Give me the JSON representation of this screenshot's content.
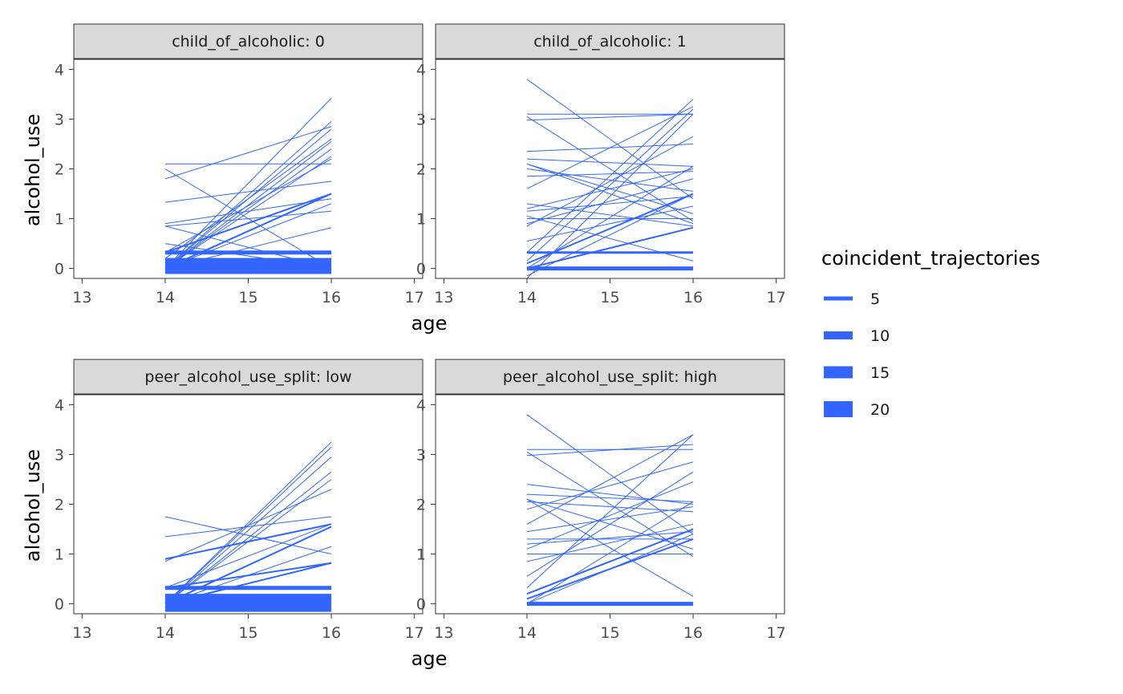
{
  "colors": {
    "line": "#3366FF",
    "strip_fill": "#d9d9d9",
    "panel_border": "#333333"
  },
  "chart_data": [
    {
      "type": "line",
      "panel": "child_of_alcoholic: 0",
      "xlabel": "age",
      "ylabel": "alcohol_use",
      "xlim": [
        12.9,
        17.1
      ],
      "ylim": [
        -0.2,
        4.2
      ],
      "x_ticks": [
        13,
        14,
        15,
        16,
        17
      ],
      "y_ticks": [
        0,
        1,
        2,
        3,
        4
      ],
      "trajectories": [
        {
          "y14": 0.05,
          "y16": 0.05,
          "n": 20
        },
        {
          "y14": 0.32,
          "y16": 0.32,
          "n": 5
        },
        {
          "y14": 2.1,
          "y16": 2.1,
          "n": 1
        },
        {
          "y14": 1.8,
          "y16": 2.85,
          "n": 1
        },
        {
          "y14": 2.0,
          "y16": 0.0,
          "n": 1
        },
        {
          "y14": 0.0,
          "y16": 3.42,
          "n": 1
        },
        {
          "y14": 0.0,
          "y16": 2.95,
          "n": 1
        },
        {
          "y14": 0.0,
          "y16": 2.8,
          "n": 1
        },
        {
          "y14": 0.0,
          "y16": 2.55,
          "n": 1
        },
        {
          "y14": 0.0,
          "y16": 2.4,
          "n": 1
        },
        {
          "y14": 0.0,
          "y16": 2.25,
          "n": 1
        },
        {
          "y14": 0.0,
          "y16": 1.5,
          "n": 2
        },
        {
          "y14": 0.0,
          "y16": 1.3,
          "n": 1
        },
        {
          "y14": 0.0,
          "y16": 0.82,
          "n": 1
        },
        {
          "y14": 0.32,
          "y16": 2.2,
          "n": 1
        },
        {
          "y14": 0.32,
          "y16": 1.5,
          "n": 2
        },
        {
          "y14": 1.33,
          "y16": 1.75,
          "n": 1
        },
        {
          "y14": 0.9,
          "y16": 1.4,
          "n": 1
        },
        {
          "y14": 0.85,
          "y16": 1.15,
          "n": 1
        },
        {
          "y14": 0.85,
          "y16": 0.0,
          "n": 1
        },
        {
          "y14": 0.5,
          "y16": 0.0,
          "n": 1
        },
        {
          "y14": 0.2,
          "y16": 2.6,
          "n": 1
        }
      ]
    },
    {
      "type": "line",
      "panel": "child_of_alcoholic: 1",
      "xlabel": "age",
      "ylabel": "",
      "xlim": [
        12.9,
        17.1
      ],
      "ylim": [
        -0.2,
        4.2
      ],
      "x_ticks": [
        13,
        14,
        15,
        16,
        17
      ],
      "y_ticks": [
        0,
        1,
        2,
        3,
        4
      ],
      "trajectories": [
        {
          "y14": 0.0,
          "y16": 0.0,
          "n": 5
        },
        {
          "y14": 0.32,
          "y16": 0.32,
          "n": 3
        },
        {
          "y14": 3.8,
          "y16": 1.4,
          "n": 1
        },
        {
          "y14": 3.1,
          "y16": 3.1,
          "n": 1
        },
        {
          "y14": 2.98,
          "y16": 3.1,
          "n": 1
        },
        {
          "y14": 3.05,
          "y16": 0.95,
          "n": 1
        },
        {
          "y14": 2.35,
          "y16": 2.5,
          "n": 1
        },
        {
          "y14": 2.2,
          "y16": 2.05,
          "n": 1
        },
        {
          "y14": 2.1,
          "y16": 0.9,
          "n": 1
        },
        {
          "y14": 2.0,
          "y16": 1.55,
          "n": 1
        },
        {
          "y14": 1.85,
          "y16": 1.95,
          "n": 1
        },
        {
          "y14": 1.6,
          "y16": 3.25,
          "n": 1
        },
        {
          "y14": 1.3,
          "y16": 0.85,
          "n": 1
        },
        {
          "y14": 1.15,
          "y16": 1.45,
          "n": 1
        },
        {
          "y14": 1.05,
          "y16": 0.15,
          "n": 1
        },
        {
          "y14": 1.0,
          "y16": 1.0,
          "n": 1
        },
        {
          "y14": 0.9,
          "y16": 1.8,
          "n": 1
        },
        {
          "y14": 0.85,
          "y16": 2.65,
          "n": 1
        },
        {
          "y14": 0.55,
          "y16": 1.25,
          "n": 1
        },
        {
          "y14": 0.32,
          "y16": 3.4,
          "n": 1
        },
        {
          "y14": 0.15,
          "y16": 3.2,
          "n": 1
        },
        {
          "y14": 0.1,
          "y16": 1.5,
          "n": 2
        },
        {
          "y14": 0.0,
          "y16": 0.82,
          "n": 2
        },
        {
          "y14": 0.0,
          "y16": 2.05,
          "n": 1
        },
        {
          "y14": -0.15,
          "y16": 1.5,
          "n": 1
        },
        {
          "y14": -0.2,
          "y16": 3.1,
          "n": 1
        },
        {
          "y14": 1.2,
          "y16": 2.0,
          "n": 1
        },
        {
          "y14": 2.1,
          "y16": 1.1,
          "n": 1
        }
      ]
    },
    {
      "type": "line",
      "panel": "peer_alcohol_use_split: low",
      "xlabel": "age",
      "ylabel": "alcohol_use",
      "xlim": [
        12.9,
        17.1
      ],
      "ylim": [
        -0.2,
        4.2
      ],
      "x_ticks": [
        13,
        14,
        15,
        16,
        17
      ],
      "y_ticks": [
        0,
        1,
        2,
        3,
        4
      ],
      "trajectories": [
        {
          "y14": 0.0,
          "y16": 0.0,
          "n": 20
        },
        {
          "y14": 0.32,
          "y16": 0.32,
          "n": 5
        },
        {
          "y14": 0.12,
          "y16": 0.12,
          "n": 10
        },
        {
          "y14": 1.75,
          "y16": 1.0,
          "n": 1
        },
        {
          "y14": 1.35,
          "y16": 1.75,
          "n": 1
        },
        {
          "y14": 0.9,
          "y16": 1.6,
          "n": 2
        },
        {
          "y14": 0.85,
          "y16": 2.3,
          "n": 1
        },
        {
          "y14": 0.0,
          "y16": 3.25,
          "n": 1
        },
        {
          "y14": 0.0,
          "y16": 3.15,
          "n": 1
        },
        {
          "y14": 0.0,
          "y16": 2.95,
          "n": 1
        },
        {
          "y14": 0.0,
          "y16": 2.65,
          "n": 1
        },
        {
          "y14": 0.0,
          "y16": 2.5,
          "n": 1
        },
        {
          "y14": 0.0,
          "y16": 1.55,
          "n": 2
        },
        {
          "y14": 0.0,
          "y16": 1.15,
          "n": 1
        },
        {
          "y14": 0.0,
          "y16": 0.82,
          "n": 2
        },
        {
          "y14": 0.32,
          "y16": 1.6,
          "n": 1
        },
        {
          "y14": 0.32,
          "y16": 0.82,
          "n": 2
        }
      ]
    },
    {
      "type": "line",
      "panel": "peer_alcohol_use_split: high",
      "xlabel": "age",
      "ylabel": "",
      "xlim": [
        12.9,
        17.1
      ],
      "ylim": [
        -0.2,
        4.2
      ],
      "x_ticks": [
        13,
        14,
        15,
        16,
        17
      ],
      "y_ticks": [
        0,
        1,
        2,
        3,
        4
      ],
      "trajectories": [
        {
          "y14": 0.0,
          "y16": 0.0,
          "n": 5
        },
        {
          "y14": 3.8,
          "y16": 1.4,
          "n": 1
        },
        {
          "y14": 3.1,
          "y16": 3.1,
          "n": 1
        },
        {
          "y14": 2.98,
          "y16": 3.2,
          "n": 1
        },
        {
          "y14": 3.05,
          "y16": 0.95,
          "n": 1
        },
        {
          "y14": 2.4,
          "y16": 2.0,
          "n": 1
        },
        {
          "y14": 2.2,
          "y16": 2.05,
          "n": 1
        },
        {
          "y14": 2.1,
          "y16": 0.15,
          "n": 1
        },
        {
          "y14": 2.05,
          "y16": 1.85,
          "n": 1
        },
        {
          "y14": 1.9,
          "y16": 2.85,
          "n": 1
        },
        {
          "y14": 1.6,
          "y16": 3.4,
          "n": 1
        },
        {
          "y14": 1.3,
          "y16": 1.3,
          "n": 1
        },
        {
          "y14": 1.2,
          "y16": 1.45,
          "n": 1
        },
        {
          "y14": 1.1,
          "y16": 2.45,
          "n": 1
        },
        {
          "y14": 1.0,
          "y16": 1.0,
          "n": 1
        },
        {
          "y14": 0.85,
          "y16": 1.6,
          "n": 1
        },
        {
          "y14": 0.55,
          "y16": 2.65,
          "n": 1
        },
        {
          "y14": 0.32,
          "y16": 3.4,
          "n": 1
        },
        {
          "y14": 0.2,
          "y16": 1.5,
          "n": 2
        },
        {
          "y14": 0.1,
          "y16": 1.3,
          "n": 2
        },
        {
          "y14": 0.0,
          "y16": 2.05,
          "n": 1
        },
        {
          "y14": 0.0,
          "y16": 1.4,
          "n": 1
        },
        {
          "y14": 2.1,
          "y16": 1.1,
          "n": 1
        },
        {
          "y14": 1.45,
          "y16": 1.95,
          "n": 1
        }
      ]
    }
  ],
  "legend": {
    "title": "coincident_trajectories",
    "placement": "right",
    "items": [
      {
        "label": "5",
        "value": 5
      },
      {
        "label": "10",
        "value": 10
      },
      {
        "label": "15",
        "value": 15
      },
      {
        "label": "20",
        "value": 20
      }
    ]
  }
}
